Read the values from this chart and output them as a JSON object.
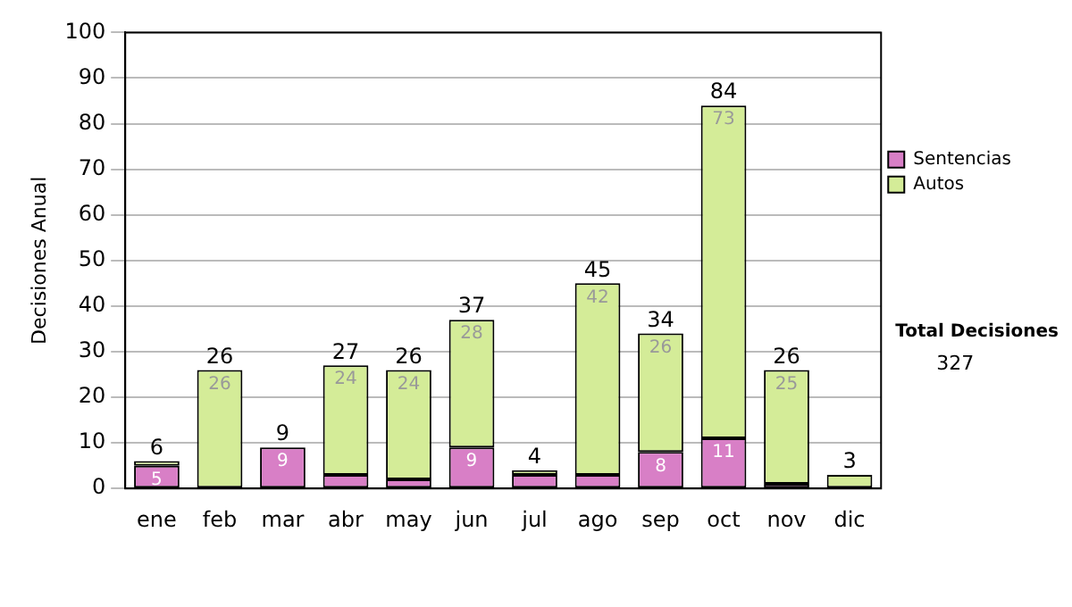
{
  "chart_data": {
    "type": "bar",
    "stacked": true,
    "ylabel": "Decisiones Anual",
    "categories": [
      "ene",
      "feb",
      "mar",
      "abr",
      "may",
      "jun",
      "jul",
      "ago",
      "sep",
      "oct",
      "nov",
      "dic"
    ],
    "series": [
      {
        "name": "Sentencias",
        "color": "#d87fc6",
        "values": [
          5,
          0,
          9,
          3,
          2,
          9,
          3,
          3,
          8,
          11,
          1,
          0
        ],
        "value_labels": [
          "5",
          null,
          "9",
          null,
          null,
          "9",
          null,
          null,
          "8",
          "11",
          null,
          null
        ]
      },
      {
        "name": "Autos",
        "color": "#d4ec98",
        "values": [
          1,
          26,
          0,
          24,
          24,
          28,
          1,
          42,
          26,
          73,
          25,
          3
        ],
        "value_labels": [
          null,
          "26",
          null,
          "24",
          "24",
          "28",
          null,
          "42",
          "26",
          "73",
          "25",
          null
        ]
      }
    ],
    "totals": [
      "6",
      "26",
      "9",
      "27",
      "26",
      "37",
      "4",
      "45",
      "34",
      "84",
      "26",
      "3"
    ],
    "ylim": [
      0,
      100
    ],
    "yticks": [
      0,
      10,
      20,
      30,
      40,
      50,
      60,
      70,
      80,
      90,
      100
    ],
    "grid": "y",
    "legend": "right",
    "annotations": [
      "Total Decisiones",
      "327"
    ]
  }
}
